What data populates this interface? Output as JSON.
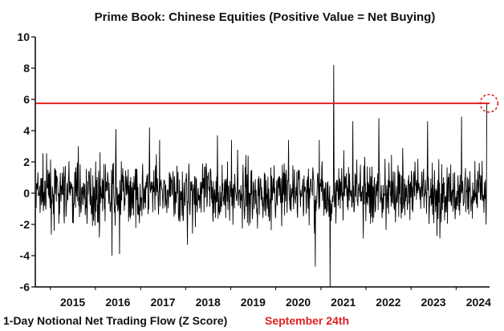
{
  "chart_data": {
    "type": "line",
    "title": "Prime Book: Chinese Equities (Positive Value = Net Buying)",
    "xlabel": "",
    "ylabel": "",
    "ylim": [
      -6,
      10
    ],
    "y_ticks": [
      "10",
      "8",
      "6",
      "4",
      "2",
      "0",
      "-2",
      "-4",
      "-6"
    ],
    "x_range": [
      "2014-09",
      "2024-09"
    ],
    "x_ticks": [
      "2015",
      "2016",
      "2017",
      "2018",
      "2019",
      "2020",
      "2021",
      "2022",
      "2023",
      "2024"
    ],
    "grid": false,
    "series": [
      {
        "name": "1-Day Notional Net Trading Flow (Z Score)",
        "color": "#000000",
        "approx_range": [
          -6,
          8.2
        ],
        "notable_points": [
          {
            "x": "2015-08",
            "y": 3.0
          },
          {
            "x": "2016-05",
            "y": -4.0
          },
          {
            "x": "2016-06",
            "y": 4.1
          },
          {
            "x": "2016-07",
            "y": -3.9
          },
          {
            "x": "2017-03",
            "y": 4.2
          },
          {
            "x": "2018-01",
            "y": -3.3
          },
          {
            "x": "2018-09",
            "y": 3.7
          },
          {
            "x": "2020-04",
            "y": 3.4
          },
          {
            "x": "2020-11",
            "y": -4.7
          },
          {
            "x": "2021-03",
            "y": -6.0
          },
          {
            "x": "2021-04",
            "y": 8.2
          },
          {
            "x": "2021-09",
            "y": 4.6
          },
          {
            "x": "2022-04",
            "y": 4.8
          },
          {
            "x": "2023-05",
            "y": 4.6
          },
          {
            "x": "2024-02",
            "y": 4.9
          },
          {
            "x": "2024-09-24",
            "y": 5.75
          }
        ]
      }
    ],
    "reference_line": {
      "y": 5.75,
      "color": "#e02020"
    },
    "highlight_circle": {
      "x": "2024-09-24",
      "y": 5.75,
      "color": "#e02020"
    },
    "legend": [
      {
        "label": "1-Day Notional Net Trading Flow (Z Score)",
        "color": "#111111"
      },
      {
        "label": "September 24th",
        "color": "#e02020"
      }
    ]
  }
}
